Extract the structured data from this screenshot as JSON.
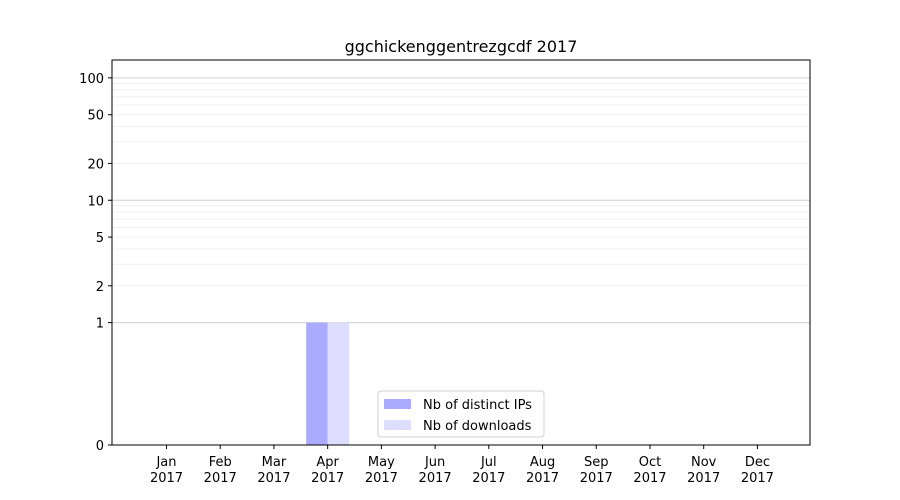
{
  "chart_data": {
    "type": "bar",
    "title": "ggchickenggentrezgcdf 2017",
    "y_scale": "symlog",
    "grid": true,
    "legend_position": "bottom-center",
    "categories": [
      "Jan\n2017",
      "Feb\n2017",
      "Mar\n2017",
      "Apr\n2017",
      "May\n2017",
      "Jun\n2017",
      "Jul\n2017",
      "Aug\n2017",
      "Sep\n2017",
      "Oct\n2017",
      "Nov\n2017",
      "Dec\n2017"
    ],
    "category_labels": [
      {
        "month": "Jan",
        "year": "2017"
      },
      {
        "month": "Feb",
        "year": "2017"
      },
      {
        "month": "Mar",
        "year": "2017"
      },
      {
        "month": "Apr",
        "year": "2017"
      },
      {
        "month": "May",
        "year": "2017"
      },
      {
        "month": "Jun",
        "year": "2017"
      },
      {
        "month": "Jul",
        "year": "2017"
      },
      {
        "month": "Aug",
        "year": "2017"
      },
      {
        "month": "Sep",
        "year": "2017"
      },
      {
        "month": "Oct",
        "year": "2017"
      },
      {
        "month": "Nov",
        "year": "2017"
      },
      {
        "month": "Dec",
        "year": "2017"
      }
    ],
    "series": [
      {
        "name": "Nb of distinct IPs",
        "color": "#aaaaff",
        "values": [
          0,
          0,
          0,
          1,
          0,
          0,
          0,
          0,
          0,
          0,
          0,
          0
        ]
      },
      {
        "name": "Nb of downloads",
        "color": "#ddddff",
        "values": [
          0,
          0,
          0,
          1,
          0,
          0,
          0,
          0,
          0,
          0,
          0,
          0
        ]
      }
    ],
    "y_ticks": [
      0,
      1,
      2,
      5,
      10,
      20,
      50,
      100
    ],
    "y_tick_labels": [
      "0",
      "1",
      "2",
      "5",
      "10",
      "20",
      "50",
      "100"
    ],
    "ylim": [
      0,
      140
    ]
  }
}
